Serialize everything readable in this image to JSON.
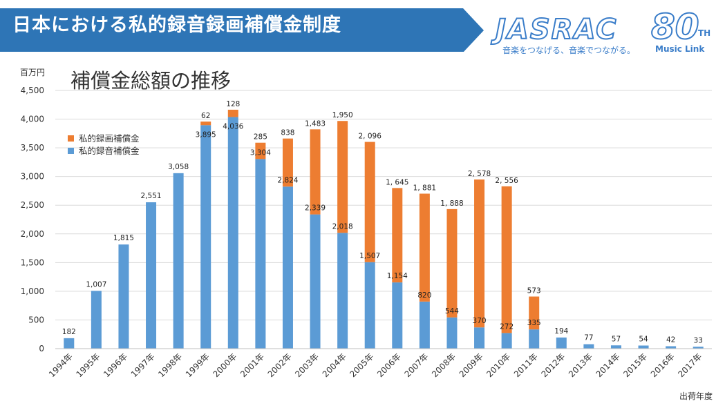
{
  "banner": {
    "title": "日本における私的録音録画補償金制度",
    "logo": "JASRAC",
    "logo_number": "80",
    "logo_suffix": "TH",
    "slogan": "音楽をつなげる、音楽でつながる。",
    "tagline": "Music Link",
    "color": "#2e75b6"
  },
  "chart_data": {
    "type": "bar",
    "stacked": true,
    "title": "補償金総額の推移",
    "unit": "百万円",
    "xlabel": "出荷年度",
    "ylim": [
      0,
      4500
    ],
    "yticks": [
      "0",
      "500",
      "1,000",
      "1,500",
      "2,000",
      "2,500",
      "3,000",
      "3,500",
      "4,000",
      "4,500"
    ],
    "grid": true,
    "legend_position": "top-left",
    "categories": [
      "1994年",
      "1995年",
      "1996年",
      "1997年",
      "1998年",
      "1999年",
      "2000年",
      "2001年",
      "2002年",
      "2003年",
      "2004年",
      "2005年",
      "2006年",
      "2007年",
      "2008年",
      "2009年",
      "2010年",
      "2011年",
      "2012年",
      "2013年",
      "2014年",
      "2015年",
      "2016年",
      "2017年"
    ],
    "series": [
      {
        "name": "私的録音補償金",
        "color": "#5b9bd5",
        "values": [
          182,
          1007,
          1815,
          2551,
          3058,
          3895,
          4036,
          3304,
          2824,
          2339,
          2018,
          1507,
          1154,
          820,
          544,
          370,
          272,
          335,
          194,
          77,
          57,
          54,
          42,
          33
        ],
        "labels": [
          "182",
          "1,007",
          "1,815",
          "2,551",
          "3,058",
          "3,895",
          "4,036",
          "3,304",
          "2,824",
          "2,339",
          "2,018",
          "1,507",
          "1,154",
          "820",
          "544",
          "370",
          "272",
          "335",
          "194",
          "77",
          "57",
          "54",
          "42",
          "33"
        ]
      },
      {
        "name": "私的録画補償金",
        "color": "#ed7d31",
        "values": [
          0,
          0,
          0,
          0,
          0,
          62,
          128,
          285,
          838,
          1483,
          1950,
          2096,
          1645,
          1881,
          1888,
          2578,
          2556,
          573,
          0,
          0,
          0,
          0,
          0,
          0
        ],
        "labels": [
          "",
          "",
          "",
          "",
          "",
          "62",
          "128",
          "285",
          "838",
          "1,483",
          "1,950",
          "2, 096",
          "1, 645",
          "1, 881",
          "1, 888",
          "2, 578",
          "2, 556",
          "573",
          "",
          "",
          "",
          "",
          "",
          ""
        ]
      }
    ]
  }
}
